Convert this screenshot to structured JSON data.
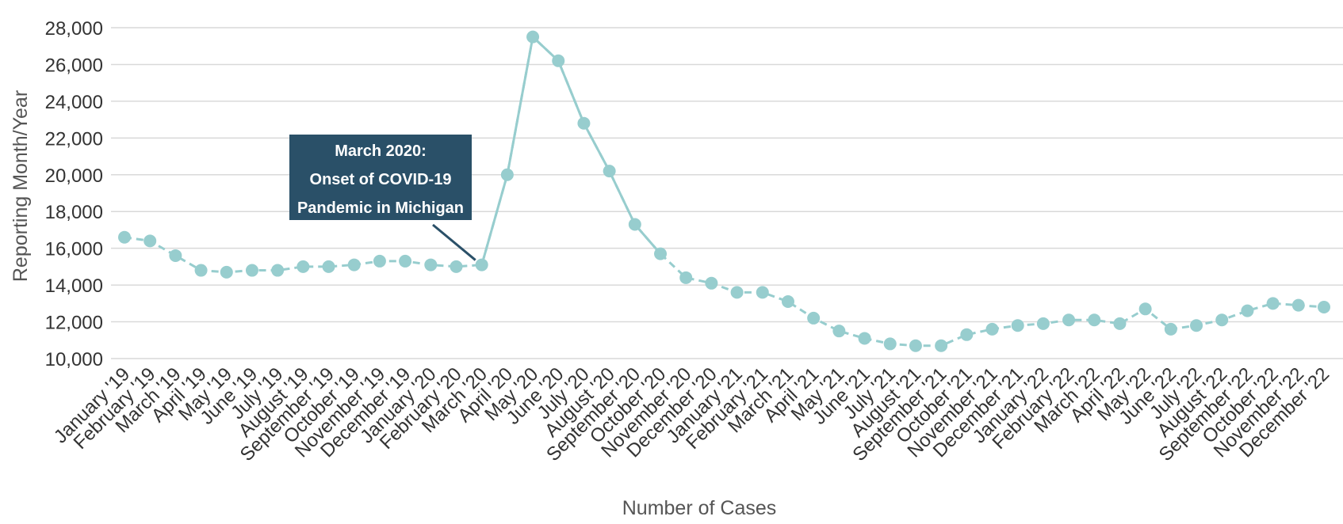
{
  "chart_data": {
    "type": "line",
    "title": "",
    "xlabel": "Number of Cases",
    "ylabel": "Reporting Month/Year",
    "ylim": [
      9500,
      28000
    ],
    "yticks": [
      10000,
      12000,
      14000,
      16000,
      18000,
      20000,
      22000,
      24000,
      26000,
      28000
    ],
    "ytick_labels": [
      "10,000",
      "12,000",
      "14,000",
      "16,000",
      "18,000",
      "20,000",
      "22,000",
      "24,000",
      "26,000",
      "28,000"
    ],
    "grid": true,
    "legend": "none",
    "categories": [
      "January '19",
      "February '19",
      "March '19",
      "April '19",
      "May '19",
      "June '19",
      "July '19",
      "August '19",
      "September '19",
      "October '19",
      "November '19",
      "December '19",
      "January '20",
      "February '20",
      "March '20",
      "April '20",
      "May '20",
      "June '20",
      "July '20",
      "August '20",
      "September '20",
      "October '20",
      "November '20",
      "December '20",
      "January '21",
      "February '21",
      "March '21",
      "April '21",
      "May '21",
      "June '21",
      "July '21",
      "August '21",
      "September '21",
      "October '21",
      "November '21",
      "December '21",
      "January '22",
      "February '22",
      "March '22",
      "April '22",
      "May '22",
      "June '22",
      "July '22",
      "August '22",
      "September '22",
      "October '22",
      "November '22",
      "December '22"
    ],
    "series": [
      {
        "color": "#97cdce",
        "values": [
          16600,
          16400,
          15600,
          14800,
          14700,
          14800,
          14800,
          15000,
          15000,
          15100,
          15300,
          15300,
          15100,
          15000,
          15100,
          20000,
          27500,
          26200,
          22800,
          20200,
          17300,
          15700,
          14400,
          14100,
          13600,
          13600,
          13100,
          12200,
          11500,
          11100,
          10800,
          10700,
          10700,
          11300,
          11600,
          11800,
          11900,
          12100,
          12100,
          11900,
          12700,
          11600,
          11800,
          12100,
          12600,
          13000,
          12900,
          12800
        ]
      }
    ],
    "annotation": {
      "lines": [
        "March 2020:",
        "Onset of COVID-19",
        "Pandemic in Michigan"
      ],
      "category": "March '20",
      "box_color": "#2a5068"
    }
  }
}
